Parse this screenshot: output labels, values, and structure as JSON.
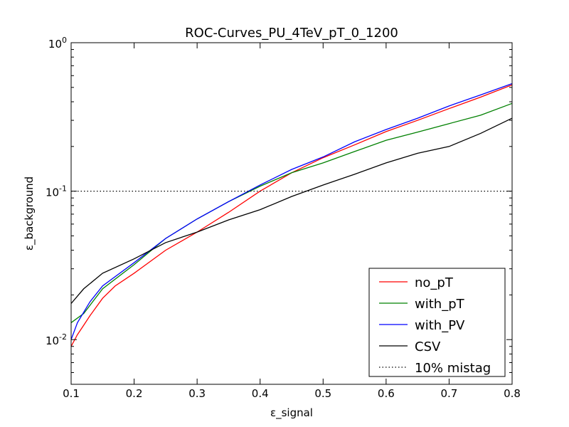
{
  "chart_data": {
    "type": "line",
    "title": "ROC-Curves_PU_4TeV_pT_0_1200",
    "xlabel": "ε_signal",
    "ylabel": "ε_background",
    "xlim": [
      0.1,
      0.8
    ],
    "ylim": [
      0.005,
      1.0
    ],
    "yscale": "log",
    "grid": false,
    "legend_position": "lower-right",
    "x_ticks": [
      "0.1",
      "0.2",
      "0.3",
      "0.4",
      "0.5",
      "0.6",
      "0.7",
      "0.8"
    ],
    "y_ticks": [
      {
        "value": 1.0,
        "base": "10",
        "exp": "0"
      },
      {
        "value": 0.1,
        "base": "10",
        "exp": "-1"
      },
      {
        "value": 0.01,
        "base": "10",
        "exp": "-2"
      }
    ],
    "series": [
      {
        "name": "no_pT",
        "color": "#ff0000",
        "x": [
          0.1,
          0.11,
          0.12,
          0.13,
          0.15,
          0.17,
          0.2,
          0.25,
          0.3,
          0.35,
          0.4,
          0.45,
          0.5,
          0.55,
          0.6,
          0.65,
          0.7,
          0.75,
          0.8
        ],
        "y": [
          0.009,
          0.0108,
          0.0125,
          0.0145,
          0.019,
          0.023,
          0.028,
          0.04,
          0.053,
          0.072,
          0.1,
          0.133,
          0.168,
          0.205,
          0.252,
          0.3,
          0.36,
          0.43,
          0.52
        ]
      },
      {
        "name": "with_pT",
        "color": "#008000",
        "x": [
          0.1,
          0.12,
          0.15,
          0.2,
          0.25,
          0.3,
          0.35,
          0.4,
          0.45,
          0.5,
          0.55,
          0.6,
          0.65,
          0.7,
          0.75,
          0.8
        ],
        "y": [
          0.013,
          0.015,
          0.022,
          0.032,
          0.048,
          0.065,
          0.085,
          0.108,
          0.133,
          0.155,
          0.185,
          0.22,
          0.25,
          0.285,
          0.325,
          0.39
        ]
      },
      {
        "name": "with_PV",
        "color": "#0000ff",
        "x": [
          0.1,
          0.11,
          0.13,
          0.15,
          0.2,
          0.25,
          0.3,
          0.35,
          0.4,
          0.45,
          0.5,
          0.55,
          0.6,
          0.65,
          0.7,
          0.75,
          0.8
        ],
        "y": [
          0.01,
          0.013,
          0.018,
          0.023,
          0.033,
          0.048,
          0.065,
          0.085,
          0.11,
          0.14,
          0.17,
          0.215,
          0.26,
          0.31,
          0.375,
          0.445,
          0.53
        ]
      },
      {
        "name": "CSV",
        "color": "#000000",
        "x": [
          0.1,
          0.12,
          0.15,
          0.2,
          0.25,
          0.3,
          0.35,
          0.4,
          0.45,
          0.5,
          0.55,
          0.6,
          0.65,
          0.7,
          0.75,
          0.8
        ],
        "y": [
          0.0175,
          0.022,
          0.028,
          0.035,
          0.045,
          0.053,
          0.064,
          0.075,
          0.092,
          0.11,
          0.13,
          0.155,
          0.18,
          0.2,
          0.245,
          0.31
        ]
      },
      {
        "name": "10% mistag",
        "color": "#000000",
        "dashed": true,
        "x": [
          0.1,
          0.8
        ],
        "y": [
          0.1,
          0.1
        ]
      }
    ]
  }
}
